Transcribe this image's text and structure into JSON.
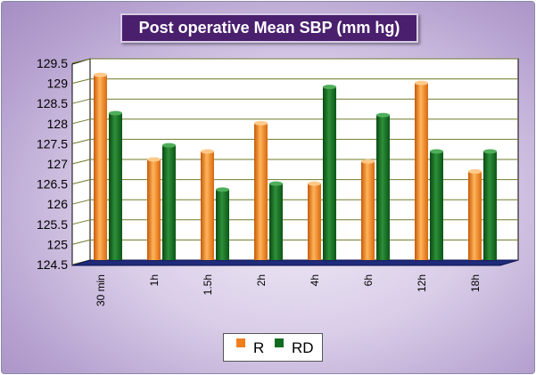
{
  "chart_data": {
    "type": "bar",
    "title": "Post operative Mean SBP (mm hg)",
    "xlabel": "",
    "ylabel": "",
    "categories": [
      "30 min",
      "1h",
      "1.5h",
      "2h",
      "4h",
      "6h",
      "12h",
      "18h"
    ],
    "series": [
      {
        "name": "R",
        "values": [
          129.1,
          127.0,
          127.2,
          127.9,
          126.4,
          126.95,
          128.9,
          126.7
        ]
      },
      {
        "name": "RD",
        "values": [
          128.15,
          127.35,
          126.25,
          126.4,
          128.8,
          128.1,
          127.2,
          127.2
        ]
      }
    ],
    "ylim": [
      124.5,
      129.5
    ],
    "yticks": [
      "124.5",
      "125",
      "125.5",
      "126",
      "126.5",
      "127",
      "127.5",
      "128",
      "128.5",
      "129",
      "129.5"
    ],
    "grid": true,
    "legend_position": "bottom-center",
    "colors": {
      "R": "#f07f1c",
      "RD": "#0f6b1d",
      "floor": "#1f2a7a",
      "title_bg": "#4a1f6e"
    }
  }
}
